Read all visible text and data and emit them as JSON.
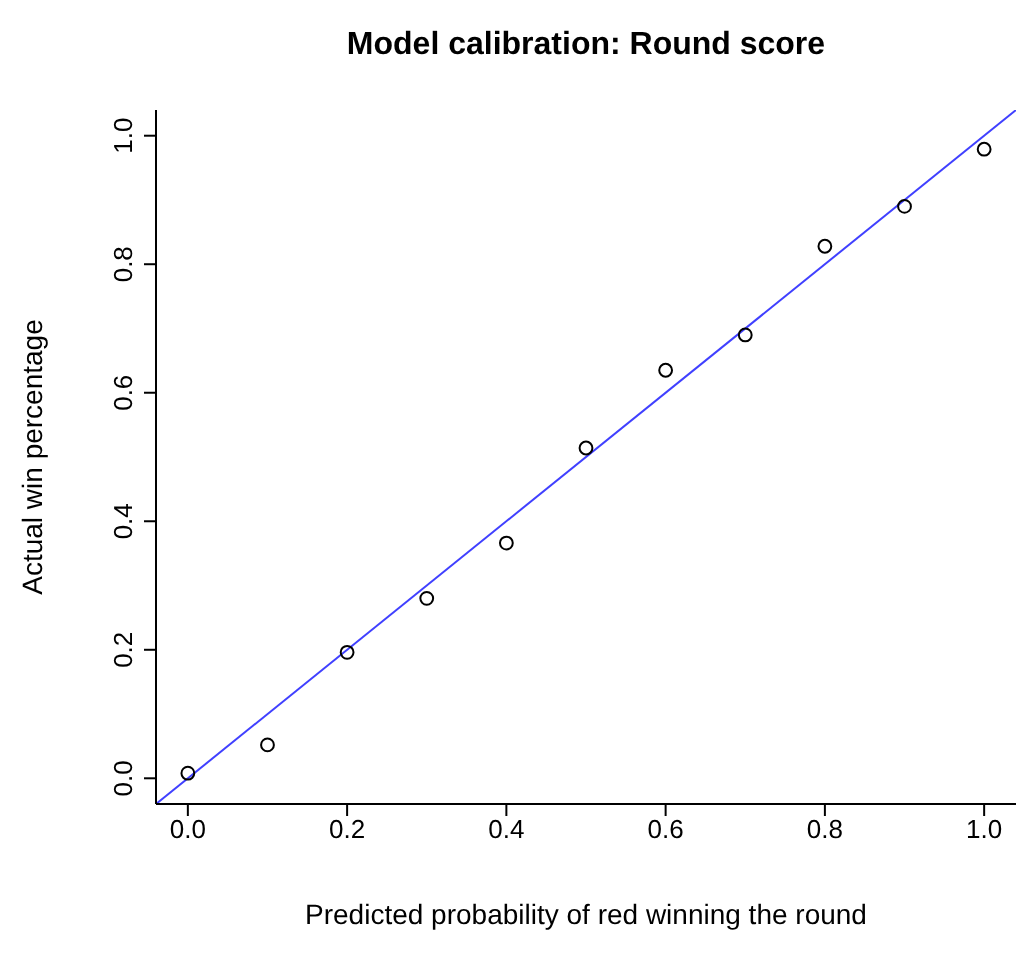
{
  "chart_data": {
    "type": "scatter",
    "title": "Model calibration: Round score",
    "xlabel": "Predicted probability of red winning the round",
    "ylabel": "Actual win percentage",
    "xlim": [
      -0.04,
      1.04
    ],
    "ylim": [
      -0.04,
      1.04
    ],
    "xticks": [
      {
        "value": 0,
        "label": "0.0"
      },
      0.2,
      0.4,
      0.6,
      0.8,
      {
        "value": 1,
        "label": "1.0"
      }
    ],
    "yticks": [
      {
        "value": 0,
        "label": "0.0"
      },
      0.2,
      0.4,
      0.6,
      0.8,
      {
        "value": 1,
        "label": "1.0"
      }
    ],
    "grid": false,
    "legend": false,
    "series": [
      {
        "marker": "circle",
        "color": "#000000",
        "x": [
          0,
          0.1,
          0.2,
          0.3,
          0.4,
          0.5,
          0.6,
          0.7,
          0.8,
          0.9,
          1.0
        ],
        "values": [
          0.008,
          0.052,
          0.196,
          0.28,
          0.366,
          0.514,
          0.635,
          0.69,
          0.828,
          0.89,
          0.979
        ]
      },
      {
        "type": "line",
        "color": "#4040ff",
        "x": [
          -0.04,
          1.04
        ],
        "values": [
          -0.04,
          1.04
        ]
      }
    ]
  }
}
